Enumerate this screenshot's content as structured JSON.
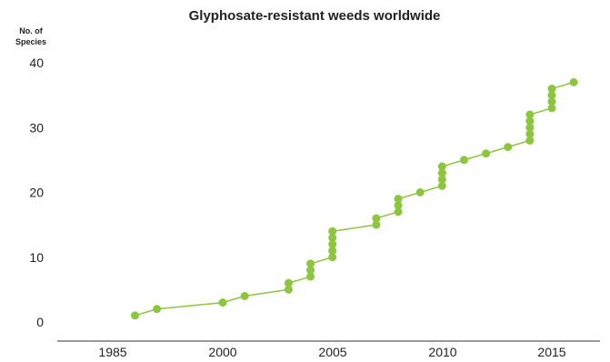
{
  "chart_data": {
    "type": "line",
    "title": "Glyphosate-resistant weeds worldwide",
    "ylabel_line1": "No. of",
    "ylabel_line2": "Species",
    "xlabel": "",
    "xlim": [
      1975.5,
      2018.7
    ],
    "ylim": [
      0,
      40
    ],
    "x_ticks": [
      "1985",
      "2000",
      "2005",
      "2010",
      "2015"
    ],
    "y_ticks": [
      "0",
      "10",
      "20",
      "30",
      "40"
    ],
    "grid": false,
    "legend": "none",
    "series": [
      {
        "color": "#8cc63f",
        "points": [
          [
            1996.0,
            1
          ],
          [
            1997.0,
            2
          ],
          [
            2000.0,
            3
          ],
          [
            2001.0,
            4
          ],
          [
            2003.0,
            5
          ],
          [
            2003.0,
            6
          ],
          [
            2004.0,
            7
          ],
          [
            2004.0,
            8
          ],
          [
            2004.0,
            9
          ],
          [
            2005.0,
            10
          ],
          [
            2005.0,
            11
          ],
          [
            2005.0,
            12
          ],
          [
            2005.0,
            13
          ],
          [
            2005.0,
            14
          ],
          [
            2007.0,
            15
          ],
          [
            2007.0,
            16
          ],
          [
            2008.0,
            17
          ],
          [
            2008.0,
            18
          ],
          [
            2008.0,
            19
          ],
          [
            2009.0,
            20
          ],
          [
            2010.0,
            21
          ],
          [
            2010.0,
            22
          ],
          [
            2010.0,
            23
          ],
          [
            2010.0,
            24
          ],
          [
            2011.0,
            25
          ],
          [
            2012.0,
            26
          ],
          [
            2013.0,
            27
          ],
          [
            2014.0,
            28
          ],
          [
            2014.0,
            29
          ],
          [
            2014.0,
            30
          ],
          [
            2014.0,
            31
          ],
          [
            2014.0,
            32
          ],
          [
            2015.0,
            33
          ],
          [
            2015.0,
            34
          ],
          [
            2015.0,
            35
          ],
          [
            2015.0,
            36
          ],
          [
            2016.0,
            37
          ]
        ]
      }
    ]
  }
}
